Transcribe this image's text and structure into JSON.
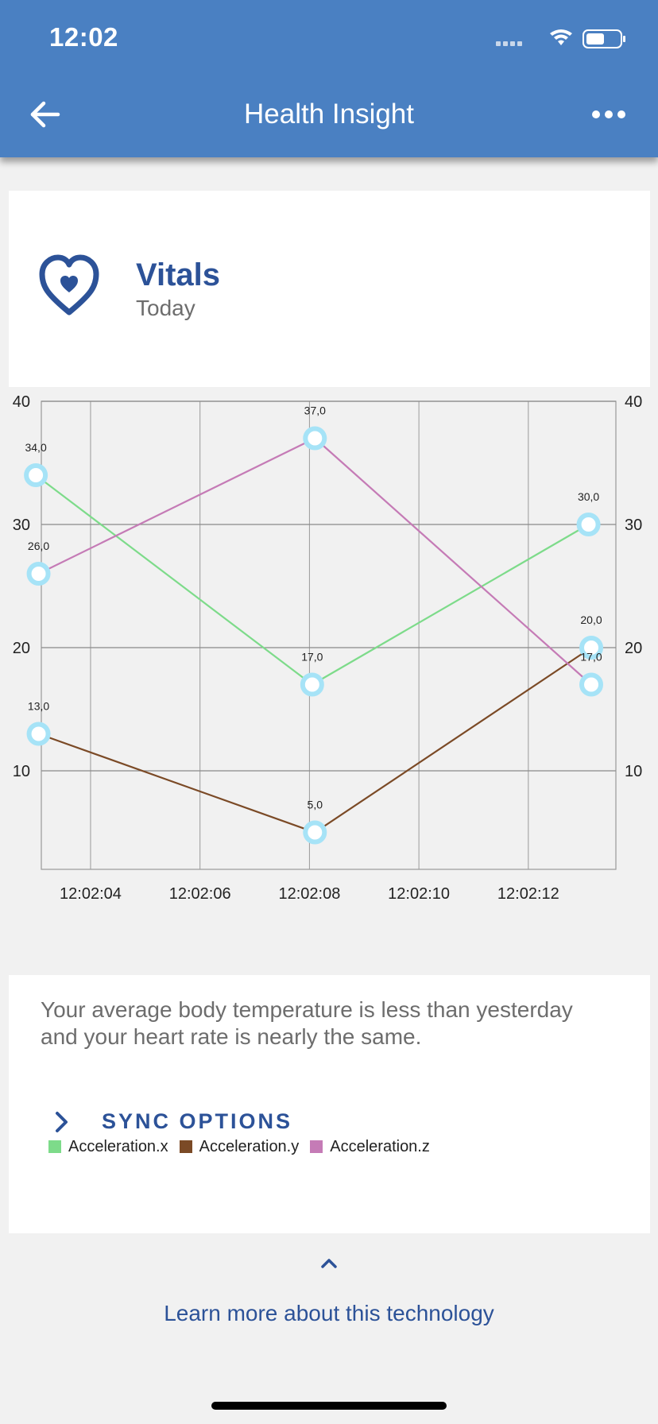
{
  "status_bar": {
    "time": "12:02"
  },
  "app_bar": {
    "title": "Health Insight",
    "back_icon": "arrow-left-icon",
    "more_icon": "more-horizontal-icon"
  },
  "card": {
    "icon": "heart-icon",
    "title": "Vitals",
    "subtitle": "Today",
    "description": "Your average body temperature is less than yesterday and your heart rate is nearly the same.",
    "sync_label": "SYNC OPTIONS"
  },
  "footer": {
    "learn_more": "Learn more about this technology"
  },
  "colors": {
    "app_bar": "#4a80c2",
    "accent": "#2c5298",
    "marker": "#a6e3f7",
    "series_x": "#7ddb8a",
    "series_y": "#7b4a26",
    "series_z": "#c57bb6"
  },
  "chart_data": {
    "type": "line",
    "x_tick_labels": [
      "12:02:04",
      "12:02:06",
      "12:02:08",
      "12:02:10",
      "12:02:12"
    ],
    "x_ticks": [
      4.0,
      6.0,
      8.0,
      10.0,
      12.0
    ],
    "xlim": [
      3.1,
      13.6
    ],
    "ylim": [
      2.0,
      40.0
    ],
    "y_ticks": [
      10,
      20,
      30,
      40
    ],
    "dual_y_axis": true,
    "grid": true,
    "legend_position": "bottom-left",
    "series": [
      {
        "name": "Acceleration.x",
        "color": "#7ddb8a",
        "x": [
          3.0,
          8.05,
          13.1
        ],
        "values": [
          34.0,
          17.0,
          30.0
        ]
      },
      {
        "name": "Acceleration.y",
        "color": "#7b4a26",
        "x": [
          3.05,
          8.1,
          13.15
        ],
        "values": [
          13.0,
          5.0,
          20.0
        ]
      },
      {
        "name": "Acceleration.z",
        "color": "#c57bb6",
        "x": [
          3.05,
          8.1,
          13.15
        ],
        "values": [
          26.0,
          37.0,
          17.0
        ]
      }
    ],
    "data_labels": [
      "34,0",
      "17,0",
      "30,0",
      "13,0",
      "5,0",
      "20,0",
      "26,0",
      "37,0",
      "17,0"
    ]
  }
}
